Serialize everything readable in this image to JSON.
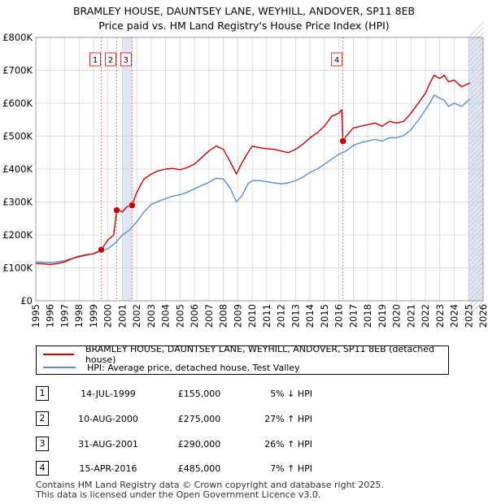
{
  "title_line1": "BRAMLEY HOUSE, DAUNTSEY LANE, WEYHILL, ANDOVER, SP11 8EB",
  "title_line2": "Price paid vs. HM Land Registry's House Price Index (HPI)",
  "colors": {
    "property": "#cc0000",
    "hpi": "#5b8fcc",
    "shade": "#dde6f3",
    "grid": "#d0d0d0",
    "vline": "#e06060"
  },
  "chart_data": {
    "type": "line",
    "title": "Price paid vs. HM Land Registry's House Price Index (HPI)",
    "xlim": [
      1995,
      2026
    ],
    "ylim": [
      0,
      800000
    ],
    "x_ticks": [
      1995,
      1996,
      1997,
      1998,
      1999,
      2000,
      2001,
      2002,
      2003,
      2004,
      2005,
      2006,
      2007,
      2008,
      2009,
      2010,
      2011,
      2012,
      2013,
      2014,
      2015,
      2016,
      2017,
      2018,
      2019,
      2020,
      2021,
      2022,
      2023,
      2024,
      2025,
      2026
    ],
    "y_ticks": [
      {
        "value": 0,
        "label": "£0"
      },
      {
        "value": 100000,
        "label": "£100K"
      },
      {
        "value": 200000,
        "label": "£200K"
      },
      {
        "value": 300000,
        "label": "£300K"
      },
      {
        "value": 400000,
        "label": "£400K"
      },
      {
        "value": 500000,
        "label": "£500K"
      },
      {
        "value": 600000,
        "label": "£600K"
      },
      {
        "value": 700000,
        "label": "£700K"
      },
      {
        "value": 800000,
        "label": "£800K"
      }
    ],
    "grid": true,
    "shaded_ranges": [
      [
        2001.0,
        2001.67
      ],
      [
        2025.0,
        2026.0
      ]
    ],
    "forecast_start": 2025.0,
    "series": [
      {
        "name": "BRAMLEY HOUSE, DAUNTSEY LANE, WEYHILL, ANDOVER, SP11 8EB (detached house)",
        "color": "#cc0000",
        "x": [
          1995.0,
          1995.5,
          1996.0,
          1996.5,
          1997.0,
          1997.5,
          1998.0,
          1998.5,
          1999.0,
          1999.54,
          2000.0,
          2000.4,
          2000.61,
          2001.0,
          2001.3,
          2001.67,
          2002.0,
          2002.5,
          2003.0,
          2003.5,
          2004.0,
          2004.5,
          2005.0,
          2005.5,
          2006.0,
          2006.5,
          2007.0,
          2007.5,
          2008.0,
          2008.5,
          2008.9,
          2009.3,
          2009.7,
          2010.0,
          2010.5,
          2011.0,
          2011.5,
          2012.0,
          2012.5,
          2013.0,
          2013.5,
          2014.0,
          2014.5,
          2015.0,
          2015.5,
          2016.0,
          2016.2,
          2016.29,
          2016.5,
          2017.0,
          2017.5,
          2018.0,
          2018.5,
          2019.0,
          2019.5,
          2020.0,
          2020.5,
          2021.0,
          2021.5,
          2022.0,
          2022.3,
          2022.6,
          2023.0,
          2023.3,
          2023.6,
          2024.0,
          2024.5,
          2025.0,
          2025.1
        ],
        "values": [
          113000,
          112000,
          110000,
          113000,
          118000,
          128000,
          135000,
          140000,
          143000,
          155000,
          185000,
          200000,
          275000,
          270000,
          285000,
          290000,
          330000,
          370000,
          385000,
          395000,
          400000,
          402000,
          398000,
          405000,
          415000,
          435000,
          455000,
          470000,
          460000,
          420000,
          385000,
          420000,
          450000,
          470000,
          465000,
          462000,
          460000,
          455000,
          450000,
          460000,
          475000,
          495000,
          510000,
          530000,
          560000,
          570000,
          580000,
          485000,
          500000,
          525000,
          530000,
          535000,
          540000,
          530000,
          545000,
          540000,
          545000,
          570000,
          600000,
          630000,
          660000,
          685000,
          675000,
          685000,
          665000,
          670000,
          650000,
          660000,
          662000
        ]
      },
      {
        "name": "HPI: Average price, detached house, Test Valley",
        "color": "#5b8fcc",
        "x": [
          1995.0,
          1995.5,
          1996.0,
          1996.5,
          1997.0,
          1997.5,
          1998.0,
          1998.5,
          1999.0,
          1999.5,
          2000.0,
          2000.5,
          2001.0,
          2001.5,
          2002.0,
          2002.5,
          2003.0,
          2003.5,
          2004.0,
          2004.5,
          2005.0,
          2005.5,
          2006.0,
          2006.5,
          2007.0,
          2007.5,
          2008.0,
          2008.5,
          2008.9,
          2009.3,
          2009.7,
          2010.0,
          2010.5,
          2011.0,
          2011.5,
          2012.0,
          2012.5,
          2013.0,
          2013.5,
          2014.0,
          2014.5,
          2015.0,
          2015.5,
          2016.0,
          2016.5,
          2017.0,
          2017.5,
          2018.0,
          2018.5,
          2019.0,
          2019.5,
          2020.0,
          2020.5,
          2021.0,
          2021.5,
          2022.0,
          2022.3,
          2022.6,
          2023.0,
          2023.3,
          2023.6,
          2024.0,
          2024.5,
          2025.0,
          2025.1
        ],
        "values": [
          118000,
          117000,
          116000,
          118000,
          122000,
          128000,
          133000,
          138000,
          143000,
          150000,
          158000,
          175000,
          200000,
          215000,
          240000,
          270000,
          292000,
          302000,
          310000,
          318000,
          322000,
          330000,
          340000,
          350000,
          360000,
          372000,
          370000,
          340000,
          300000,
          320000,
          355000,
          365000,
          365000,
          362000,
          358000,
          355000,
          358000,
          365000,
          375000,
          390000,
          400000,
          415000,
          430000,
          445000,
          455000,
          472000,
          480000,
          485000,
          490000,
          485000,
          495000,
          495000,
          502000,
          520000,
          548000,
          580000,
          600000,
          625000,
          615000,
          610000,
          590000,
          600000,
          590000,
          610000,
          612000
        ]
      }
    ],
    "transactions": [
      {
        "num": "1",
        "year": 1999.54,
        "price": 155000,
        "date": "14-JUL-1999",
        "price_label": "£155,000",
        "hpi": "5% ↓ HPI"
      },
      {
        "num": "2",
        "year": 2000.61,
        "price": 275000,
        "date": "10-AUG-2000",
        "price_label": "£275,000",
        "hpi": "27% ↑ HPI"
      },
      {
        "num": "3",
        "year": 2001.67,
        "price": 290000,
        "date": "31-AUG-2001",
        "price_label": "£290,000",
        "hpi": "26% ↑ HPI"
      },
      {
        "num": "4",
        "year": 2016.29,
        "price": 485000,
        "date": "15-APR-2016",
        "price_label": "£485,000",
        "hpi": "7% ↑ HPI"
      }
    ]
  },
  "legend": {
    "property_label": "BRAMLEY HOUSE, DAUNTSEY LANE, WEYHILL, ANDOVER, SP11 8EB (detached house)",
    "hpi_label": "HPI: Average price, detached house, Test Valley"
  },
  "footer": {
    "line1": "Contains HM Land Registry data © Crown copyright and database right 2025.",
    "line2": "This data is licensed under the Open Government Licence v3.0."
  }
}
